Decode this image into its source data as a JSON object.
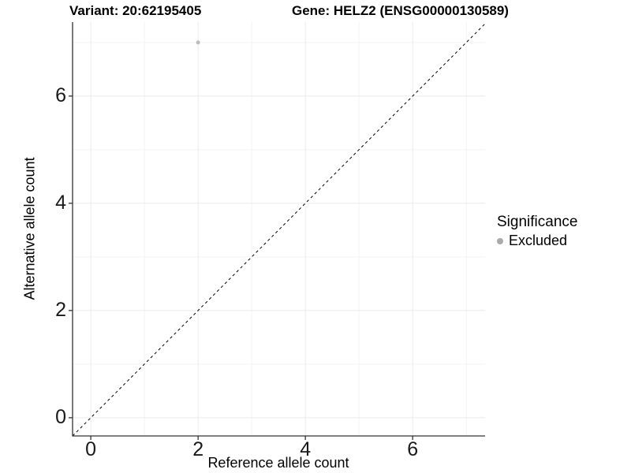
{
  "chart_data": {
    "type": "scatter",
    "title_left": "Variant: 20:62195405",
    "title_right": "Gene: HELZ2 (ENSG00000130589)",
    "xlabel": "Reference allele count",
    "ylabel": "Alternative allele count",
    "xlim": [
      -0.34,
      7.35
    ],
    "ylim": [
      -0.34,
      7.38
    ],
    "x_major_ticks": [
      0,
      2,
      4,
      6
    ],
    "y_major_ticks": [
      0,
      2,
      4,
      6
    ],
    "x_minor_ticks": [
      1,
      3,
      5,
      7
    ],
    "y_minor_ticks": [
      1,
      3,
      5,
      7
    ],
    "points": [
      {
        "x": 2,
        "y": 7,
        "significance": "Excluded"
      }
    ],
    "identity_line": {
      "slope": 1,
      "intercept": 0,
      "style": "dashed"
    },
    "legend": {
      "title": "Significance",
      "entries": [
        {
          "label": "Excluded",
          "color": "#aaaaaa"
        }
      ]
    },
    "grid": true,
    "colors": {
      "point": "#bdbdbd",
      "grid_major": "#ebebeb",
      "grid_minor": "#f3f3f3",
      "axis": "#333333",
      "identity_line": "#000000"
    }
  }
}
